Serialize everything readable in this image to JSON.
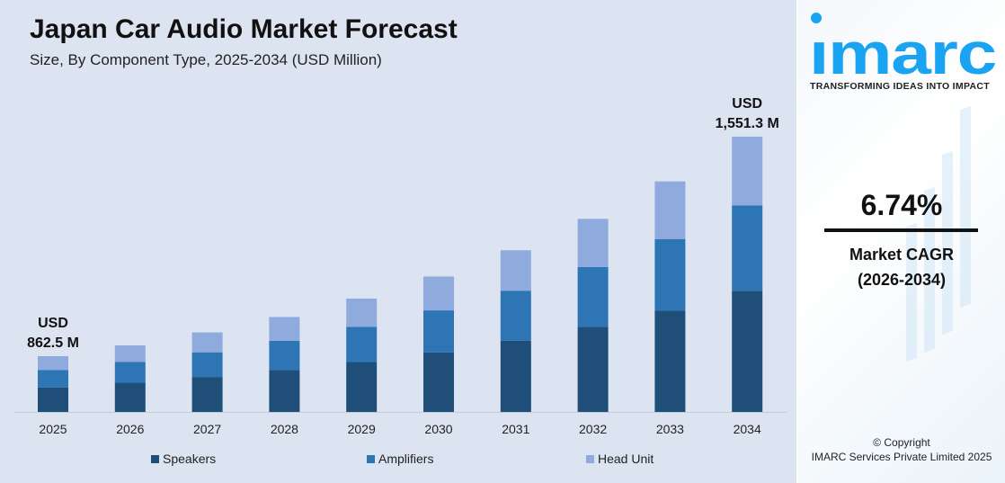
{
  "header": {
    "title": "Japan Car Audio Market Forecast",
    "subtitle": "Size, By Component Type, 2025-2034 (USD Million)"
  },
  "chart_data": {
    "type": "bar",
    "stacked": true,
    "title": "Japan Car Audio Market Forecast",
    "subtitle": "Size, By Component Type, 2025-2034 (USD Million)",
    "categories": [
      "2025",
      "2026",
      "2027",
      "2028",
      "2029",
      "2030",
      "2031",
      "2032",
      "2033",
      "2034"
    ],
    "series": [
      {
        "name": "Speakers",
        "color": "#1f4e79",
        "values": [
          379.5,
          405.1,
          432.4,
          461.5,
          492.6,
          525.8,
          561.3,
          599.1,
          639.5,
          682.6
        ]
      },
      {
        "name": "Amplifiers",
        "color": "#2e75b6",
        "values": [
          267.4,
          285.4,
          304.6,
          325.2,
          347.1,
          370.5,
          395.4,
          422.1,
          450.6,
          480.9
        ]
      },
      {
        "name": "Head Unit",
        "color": "#8faadc",
        "values": [
          215.6,
          230.1,
          245.7,
          262.2,
          279.9,
          298.8,
          318.9,
          340.4,
          363.3,
          387.8
        ]
      }
    ],
    "totals": [
      862.5,
      920.6,
      982.7,
      1048.9,
      1119.6,
      1195.1,
      1275.6,
      1361.6,
      1453.4,
      1551.3
    ],
    "annotations": [
      {
        "category": "2025",
        "line1": "USD",
        "line2": "862.5 M"
      },
      {
        "category": "2034",
        "line1": "USD",
        "line2": "1,551.3 M"
      }
    ],
    "legend_position": "bottom",
    "grid": false,
    "y_axis_visible": false
  },
  "sidebar": {
    "brand": "imarc",
    "tagline": "TRANSFORMING IDEAS INTO IMPACT",
    "cagr_value": "6.74%",
    "cagr_label": "Market CAGR",
    "cagr_period": "(2026-2034)",
    "copyright": "© Copyright",
    "company": "IMARC Services Private Limited 2025",
    "brand_color": "#1aa3f0"
  }
}
